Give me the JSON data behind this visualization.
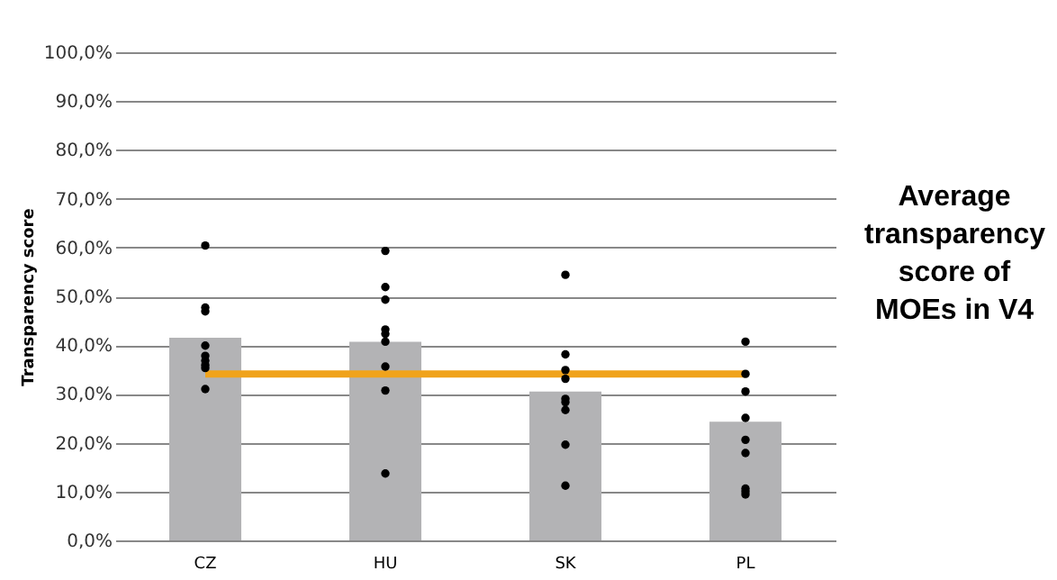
{
  "chart_data": {
    "type": "bar",
    "title": "Average transparency score of MOEs in V4",
    "ylabel": "Transparency score",
    "categories": [
      "CZ",
      "HU",
      "SK",
      "PL"
    ],
    "series": [
      {
        "type": "bar",
        "color": "#b3b3b5",
        "values": [
          41.5,
          40.7,
          30.5,
          24.3
        ]
      },
      {
        "type": "line",
        "color": "#f0a31c",
        "values": [
          34.1,
          34.1,
          34.1,
          34.1
        ]
      },
      {
        "type": "scatter",
        "color": "#000000",
        "marker": "circle",
        "x": [
          "CZ",
          "CZ",
          "CZ",
          "CZ",
          "CZ",
          "CZ",
          "CZ",
          "CZ",
          "CZ",
          "HU",
          "HU",
          "HU",
          "HU",
          "HU",
          "HU",
          "HU",
          "HU",
          "HU",
          "SK",
          "SK",
          "SK",
          "SK",
          "SK",
          "SK",
          "SK",
          "SK",
          "SK",
          "PL",
          "PL",
          "PL",
          "PL",
          "PL",
          "PL",
          "PL",
          "PL",
          "PL"
        ],
        "values": [
          60.4,
          47.7,
          46.9,
          39.9,
          37.8,
          36.8,
          35.9,
          35.3,
          31.0,
          59.3,
          51.9,
          49.3,
          43.2,
          42.3,
          40.7,
          35.6,
          30.7,
          13.7,
          54.4,
          38.1,
          34.9,
          33.1,
          29.0,
          28.3,
          26.7,
          19.6,
          11.2,
          40.7,
          34.1,
          30.5,
          25.1,
          20.6,
          17.9,
          10.6,
          10.0,
          9.4
        ]
      }
    ],
    "ylim": [
      0,
      100
    ],
    "yticks": [
      {
        "value": 0,
        "label": "0,0%"
      },
      {
        "value": 10,
        "label": "10,0%"
      },
      {
        "value": 20,
        "label": "20,0%"
      },
      {
        "value": 30,
        "label": "30,0%"
      },
      {
        "value": 40,
        "label": "40,0%"
      },
      {
        "value": 50,
        "label": "50,0%"
      },
      {
        "value": 60,
        "label": "60,0%"
      },
      {
        "value": 70,
        "label": "70,0%"
      },
      {
        "value": 80,
        "label": "80,0%"
      },
      {
        "value": 90,
        "label": "90,0%"
      },
      {
        "value": 100,
        "label": "100,0%"
      }
    ],
    "grid": "y"
  }
}
